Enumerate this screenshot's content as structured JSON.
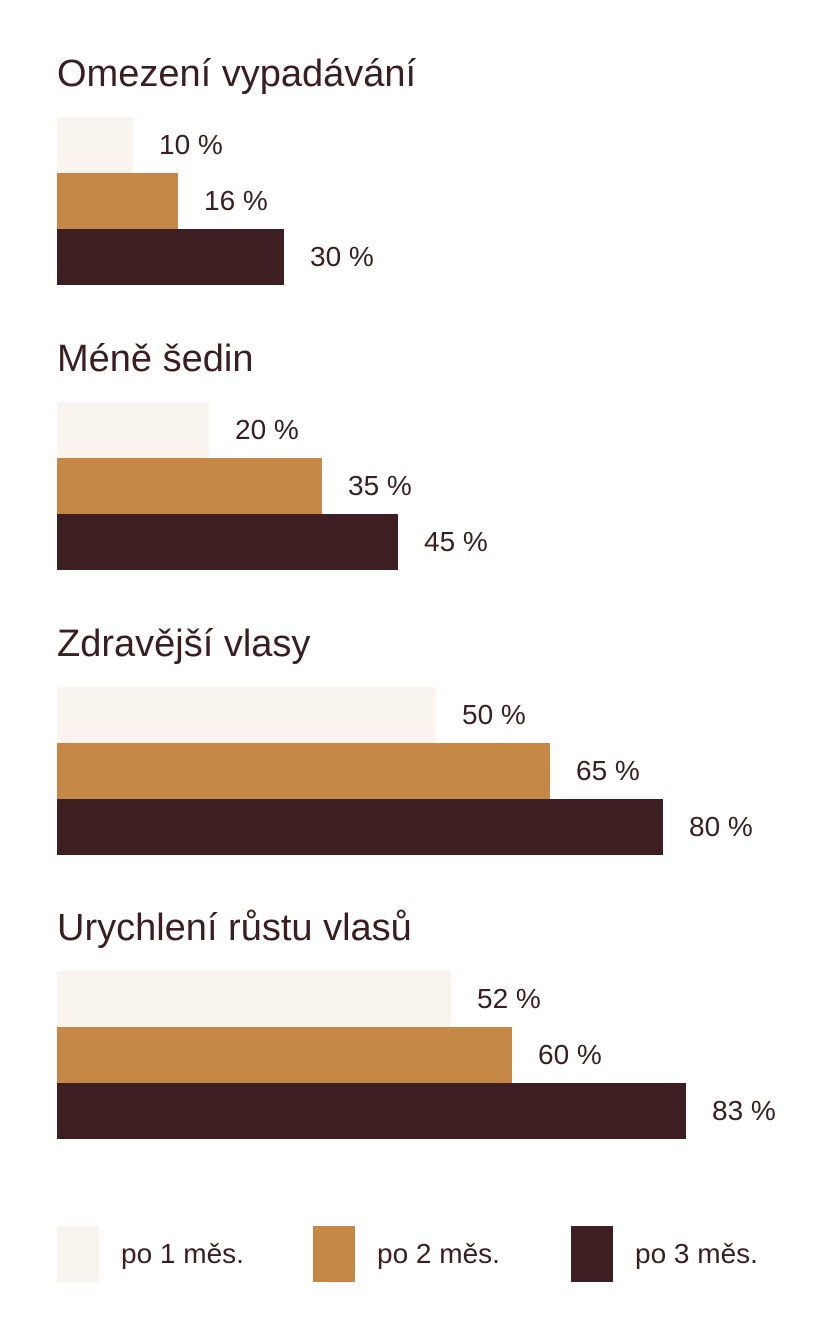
{
  "chart_data": {
    "type": "bar",
    "orientation": "horizontal",
    "unit": "%",
    "xlim": [
      0,
      100
    ],
    "grid": false,
    "legend_placement": "bottom",
    "categories": [
      "Omezení vypadávání",
      "Méně šedin",
      "Zdravější vlasy",
      "Urychlení růstu vlasů"
    ],
    "series": [
      {
        "name": "po 1 měs.",
        "color": "#f9f4ee",
        "values": [
          10,
          20,
          50,
          52
        ],
        "labels": [
          "10 %",
          "20 %",
          "50 %",
          "52 %"
        ]
      },
      {
        "name": "po 2 měs.",
        "color": "#c68847",
        "values": [
          16,
          35,
          65,
          60
        ],
        "labels": [
          "16 %",
          "35 %",
          "65 %",
          "60 %"
        ]
      },
      {
        "name": "po 3 měs.",
        "color": "#3d1e21",
        "values": [
          30,
          45,
          80,
          83
        ],
        "labels": [
          "30 %",
          "45 %",
          "80 %",
          "83 %"
        ]
      }
    ]
  }
}
